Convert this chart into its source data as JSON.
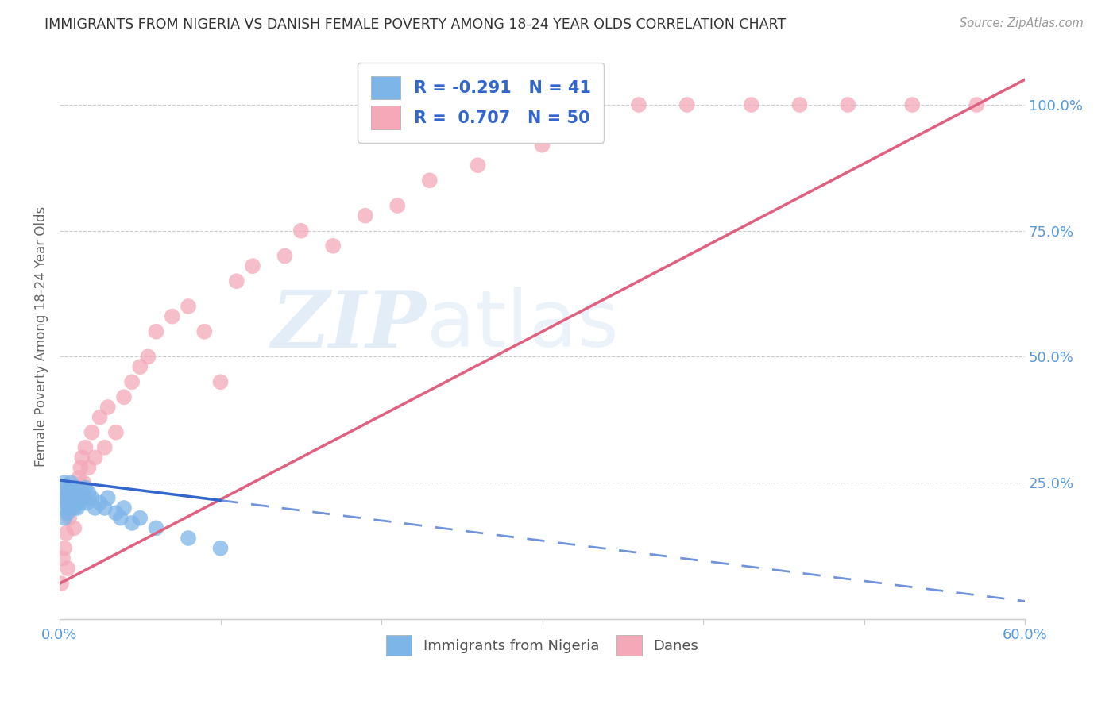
{
  "title": "IMMIGRANTS FROM NIGERIA VS DANISH FEMALE POVERTY AMONG 18-24 YEAR OLDS CORRELATION CHART",
  "source": "Source: ZipAtlas.com",
  "ylabel": "Female Poverty Among 18-24 Year Olds",
  "x_min": 0.0,
  "x_max": 0.6,
  "y_min": -0.02,
  "y_max": 1.1,
  "x_ticks": [
    0.0,
    0.1,
    0.2,
    0.3,
    0.4,
    0.5,
    0.6
  ],
  "y_ticks_right": [
    0.25,
    0.5,
    0.75,
    1.0
  ],
  "y_tick_labels_right": [
    "25.0%",
    "50.0%",
    "75.0%",
    "100.0%"
  ],
  "nigeria_R": -0.291,
  "nigeria_N": 41,
  "danes_R": 0.707,
  "danes_N": 50,
  "nigeria_color": "#7EB5E8",
  "danes_color": "#F4A8B8",
  "nigeria_line_color": "#3366CC",
  "danes_line_color": "#E06080",
  "legend_label_nigeria": "Immigrants from Nigeria",
  "legend_label_danes": "Danes",
  "watermark_zip": "ZIP",
  "watermark_atlas": "atlas",
  "background_color": "#FFFFFF",
  "grid_color": "#CCCCCC",
  "nigeria_x": [
    0.001,
    0.002,
    0.002,
    0.003,
    0.003,
    0.004,
    0.004,
    0.005,
    0.005,
    0.006,
    0.006,
    0.007,
    0.007,
    0.008,
    0.008,
    0.009,
    0.009,
    0.01,
    0.01,
    0.011,
    0.011,
    0.012,
    0.013,
    0.014,
    0.015,
    0.016,
    0.017,
    0.018,
    0.02,
    0.022,
    0.025,
    0.028,
    0.03,
    0.035,
    0.038,
    0.04,
    0.045,
    0.05,
    0.06,
    0.08,
    0.1
  ],
  "nigeria_y": [
    0.24,
    0.2,
    0.22,
    0.18,
    0.25,
    0.21,
    0.23,
    0.19,
    0.22,
    0.24,
    0.2,
    0.22,
    0.25,
    0.21,
    0.23,
    0.2,
    0.22,
    0.24,
    0.21,
    0.23,
    0.2,
    0.22,
    0.21,
    0.23,
    0.22,
    0.24,
    0.21,
    0.23,
    0.22,
    0.2,
    0.21,
    0.2,
    0.22,
    0.19,
    0.18,
    0.2,
    0.17,
    0.18,
    0.16,
    0.14,
    0.12
  ],
  "danes_x": [
    0.001,
    0.002,
    0.003,
    0.004,
    0.005,
    0.006,
    0.007,
    0.008,
    0.009,
    0.01,
    0.011,
    0.012,
    0.013,
    0.014,
    0.015,
    0.016,
    0.018,
    0.02,
    0.022,
    0.025,
    0.028,
    0.03,
    0.035,
    0.04,
    0.045,
    0.05,
    0.055,
    0.06,
    0.07,
    0.08,
    0.09,
    0.1,
    0.11,
    0.12,
    0.14,
    0.15,
    0.17,
    0.19,
    0.21,
    0.23,
    0.26,
    0.3,
    0.33,
    0.36,
    0.39,
    0.43,
    0.46,
    0.49,
    0.53,
    0.57
  ],
  "danes_y": [
    0.05,
    0.1,
    0.12,
    0.15,
    0.08,
    0.18,
    0.2,
    0.22,
    0.16,
    0.24,
    0.22,
    0.26,
    0.28,
    0.3,
    0.25,
    0.32,
    0.28,
    0.35,
    0.3,
    0.38,
    0.32,
    0.4,
    0.35,
    0.42,
    0.45,
    0.48,
    0.5,
    0.55,
    0.58,
    0.6,
    0.55,
    0.45,
    0.65,
    0.68,
    0.7,
    0.75,
    0.72,
    0.78,
    0.8,
    0.85,
    0.88,
    0.92,
    1.0,
    1.0,
    1.0,
    1.0,
    1.0,
    1.0,
    1.0,
    1.0
  ],
  "danes_line_x0": 0.0,
  "danes_line_y0": 0.05,
  "danes_line_x1": 0.6,
  "danes_line_y1": 1.05,
  "nigeria_line_solid_x0": 0.0,
  "nigeria_line_solid_y0": 0.255,
  "nigeria_line_solid_x1": 0.1,
  "nigeria_line_solid_y1": 0.215,
  "nigeria_line_dash_x0": 0.1,
  "nigeria_line_dash_y0": 0.215,
  "nigeria_line_dash_x1": 0.6,
  "nigeria_line_dash_y1": 0.015
}
